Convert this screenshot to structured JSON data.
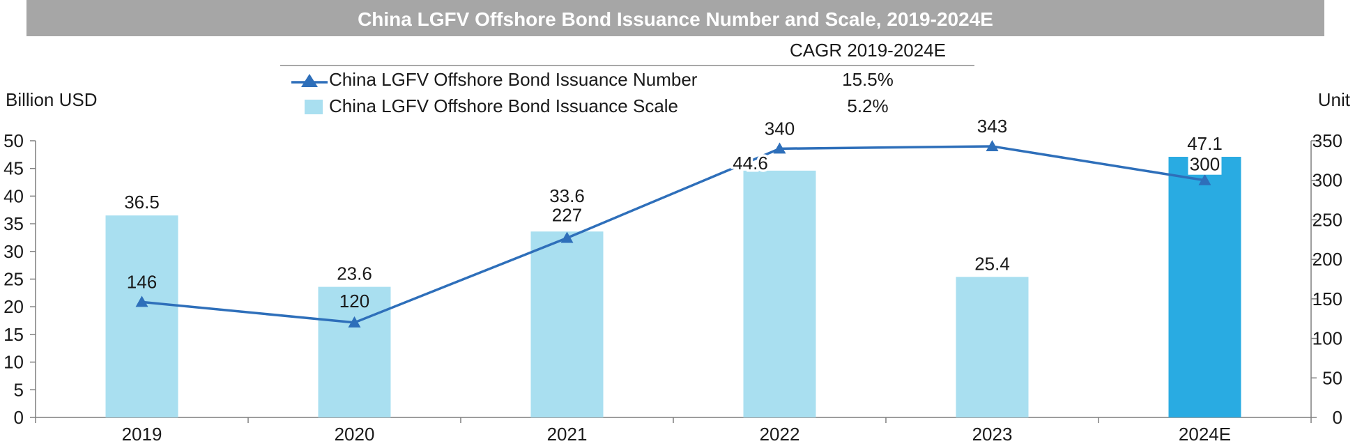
{
  "chart_data": {
    "type": "bar",
    "title": "China LGFV Offshore Bond Issuance Number and Scale, 2019-2024E",
    "categories": [
      "2019",
      "2020",
      "2021",
      "2022",
      "2023",
      "2024E"
    ],
    "series": [
      {
        "name": "China LGFV Offshore Bond Issuance Scale",
        "type": "bar",
        "axis": "left",
        "values": [
          36.5,
          23.6,
          33.6,
          44.6,
          25.4,
          47.1
        ],
        "labels": [
          "36.5",
          "23.6",
          "33.6",
          "44.6",
          "25.4",
          "47.1"
        ],
        "color": "#a9dff0",
        "highlight_color": "#29abe2",
        "highlight_index": 5,
        "cagr": "5.2%"
      },
      {
        "name": "China LGFV Offshore Bond Issuance Number",
        "type": "line",
        "axis": "right",
        "values": [
          146,
          120,
          227,
          340,
          343,
          300
        ],
        "labels": [
          "146",
          "120",
          "227",
          "340",
          "343",
          "300"
        ],
        "color": "#2e6fba",
        "marker": "triangle",
        "cagr": "15.5%"
      }
    ],
    "cagr_header": "CAGR 2019-2024E",
    "ylabel_left": "Billion USD",
    "ylabel_right": "Unit",
    "ylim_left": [
      0,
      50
    ],
    "yticks_left": [
      "0",
      "5",
      "10",
      "15",
      "20",
      "25",
      "30",
      "35",
      "40",
      "45",
      "50"
    ],
    "ylim_right": [
      0,
      350
    ],
    "yticks_right": [
      "0",
      "50",
      "100",
      "150",
      "200",
      "250",
      "300",
      "350"
    ],
    "grid": false,
    "legend_position": "top-left"
  }
}
